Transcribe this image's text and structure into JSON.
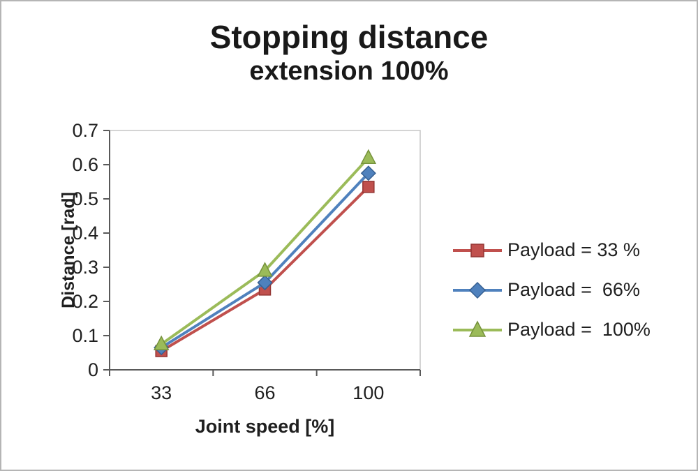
{
  "chart_data": {
    "type": "line",
    "title": "Stopping distance",
    "subtitle": "extension 100%",
    "xlabel": "Joint speed [%]",
    "ylabel": "Distance [rad]",
    "categories": [
      "33",
      "66",
      "100"
    ],
    "ylim": [
      0,
      0.7
    ],
    "ytick_step": 0.1,
    "grid": false,
    "legend_position": "right",
    "series": [
      {
        "name": "Payload = 33 %",
        "color": "#c0504d",
        "edge": "#943634",
        "marker": "square",
        "values": [
          0.055,
          0.235,
          0.535
        ]
      },
      {
        "name": "Payload =  66%",
        "color": "#4f81bd",
        "edge": "#366092",
        "marker": "diamond",
        "values": [
          0.065,
          0.255,
          0.575
        ]
      },
      {
        "name": "Payload =  100%",
        "color": "#9bbb59",
        "edge": "#76923c",
        "marker": "triangle",
        "values": [
          0.075,
          0.29,
          0.62
        ]
      }
    ],
    "colors": {
      "axis": "#595959",
      "plot_border": "#c6c6c6",
      "text": "#1f1f1f"
    }
  }
}
